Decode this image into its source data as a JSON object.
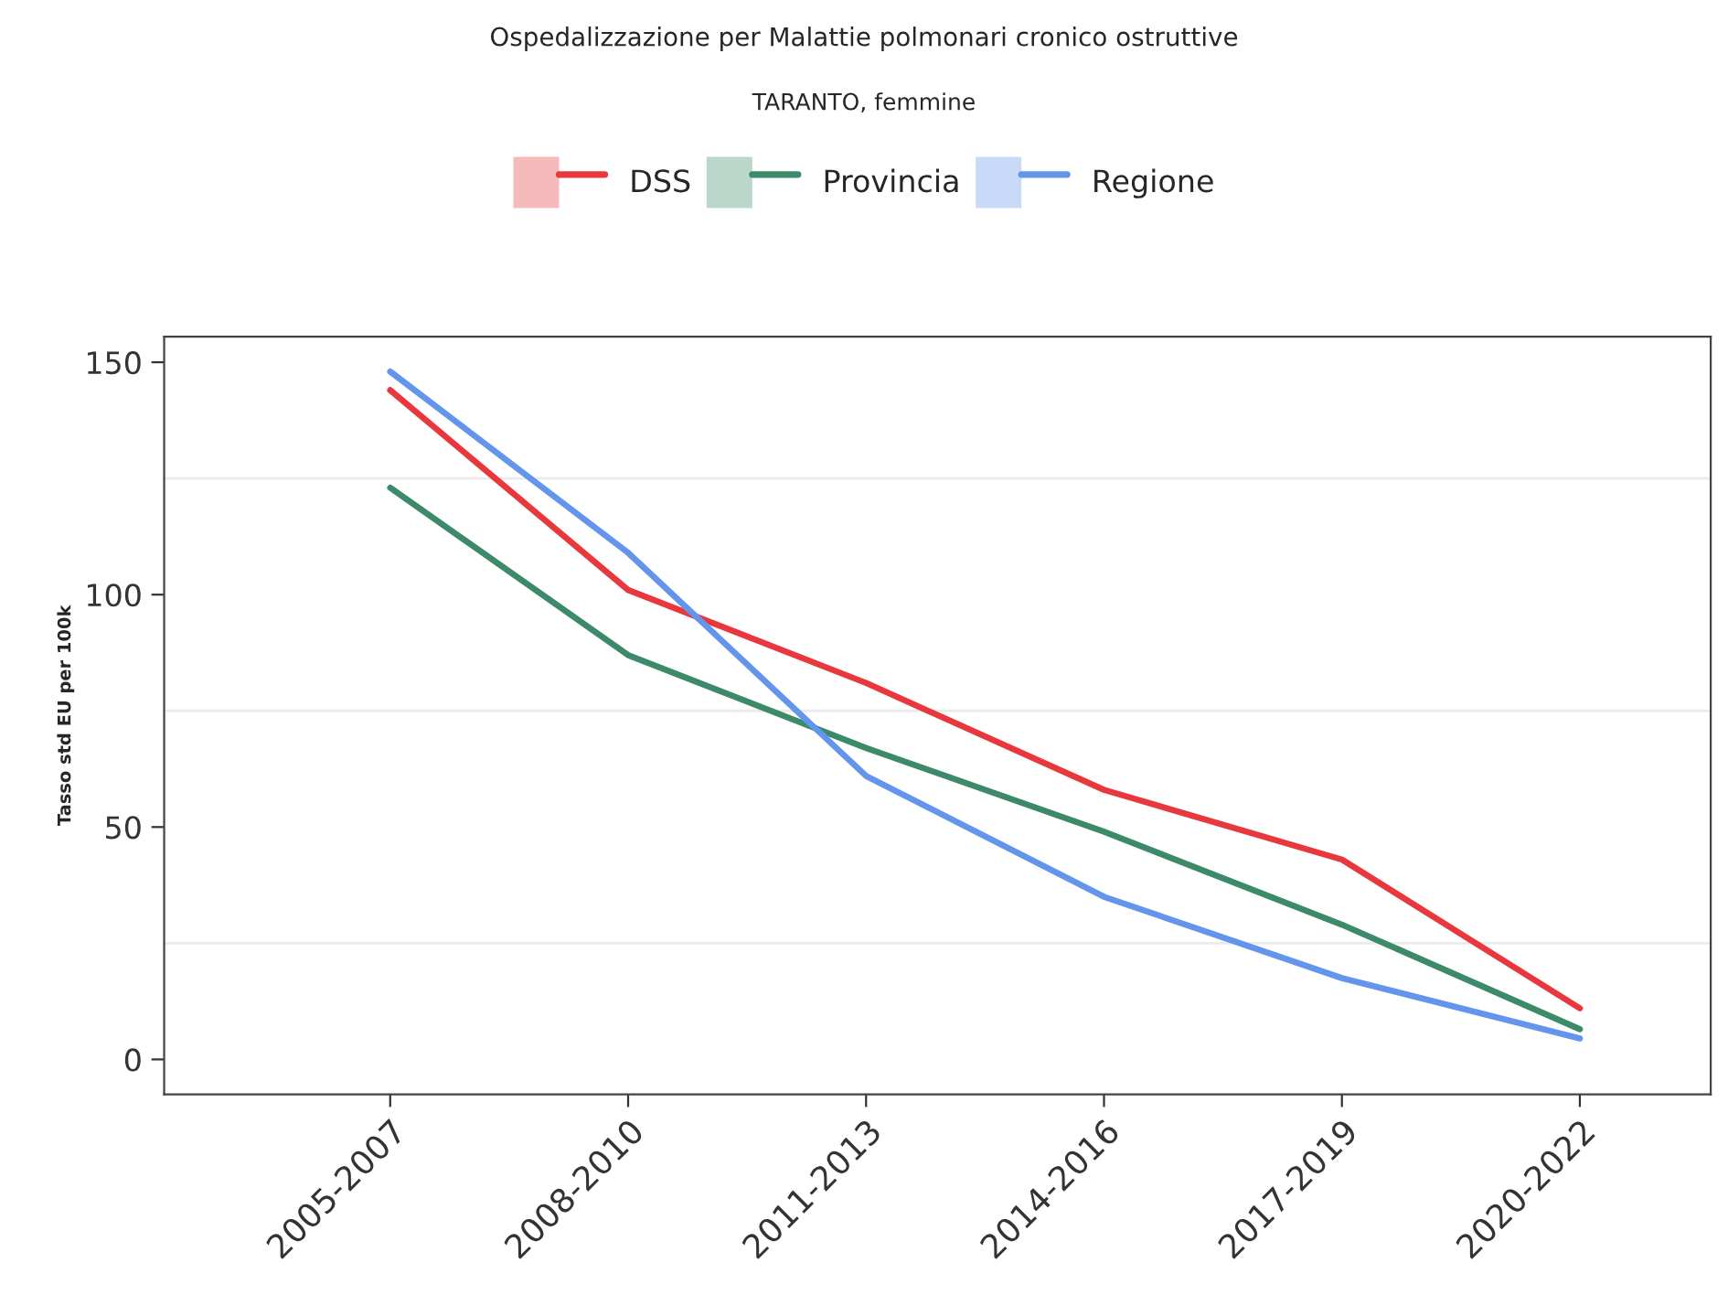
{
  "chart_data": {
    "type": "line",
    "title": "Ospedalizzazione per Malattie polmonari cronico ostruttive",
    "subtitle": "TARANTO, femmine",
    "ylabel": "Tasso std EU per 100k",
    "categories": [
      "2005-2007",
      "2008-2010",
      "2011-2013",
      "2014-2016",
      "2017-2019",
      "2020-2022"
    ],
    "series": [
      {
        "name": "DSS",
        "color": "#e8383d",
        "values": [
          144,
          101,
          81,
          58,
          43,
          11
        ]
      },
      {
        "name": "Provincia",
        "color": "#3d8a6a",
        "values": [
          123,
          87,
          67,
          49,
          29,
          6.5
        ]
      },
      {
        "name": "Regione",
        "color": "#6495ed",
        "values": [
          148,
          109,
          61,
          35,
          17.5,
          4.5
        ]
      }
    ],
    "ylim": [
      -7.5,
      155.5
    ],
    "yticks": [
      0,
      50,
      100,
      150
    ],
    "grid": "y",
    "legend": "top",
    "marker": "none",
    "line_style": "solid"
  }
}
